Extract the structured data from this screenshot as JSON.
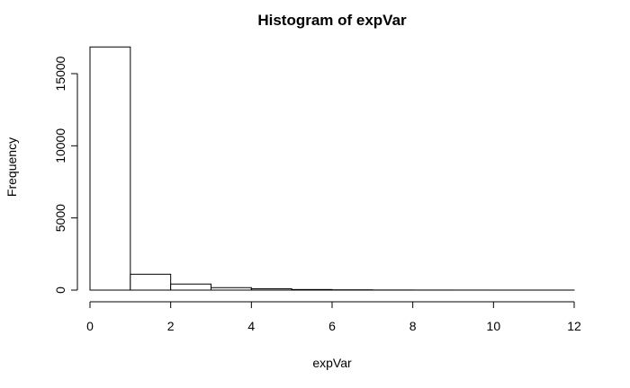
{
  "chart_data": {
    "type": "bar",
    "title": "Histogram of expVar",
    "xlabel": "expVar",
    "ylabel": "Frequency",
    "bins": [
      {
        "start": 0,
        "end": 1,
        "count": 16850
      },
      {
        "start": 1,
        "end": 2,
        "count": 1100
      },
      {
        "start": 2,
        "end": 3,
        "count": 420
      },
      {
        "start": 3,
        "end": 4,
        "count": 170
      },
      {
        "start": 4,
        "end": 5,
        "count": 90
      },
      {
        "start": 5,
        "end": 6,
        "count": 40
      },
      {
        "start": 6,
        "end": 7,
        "count": 20
      },
      {
        "start": 7,
        "end": 8,
        "count": 8
      },
      {
        "start": 8,
        "end": 9,
        "count": 4
      },
      {
        "start": 9,
        "end": 10,
        "count": 2
      },
      {
        "start": 10,
        "end": 11,
        "count": 1
      },
      {
        "start": 11,
        "end": 12,
        "count": 1
      }
    ],
    "xlim": [
      0,
      12
    ],
    "ylim": [
      0,
      17500
    ],
    "x_ticks": [
      0,
      2,
      4,
      6,
      8,
      10,
      12
    ],
    "y_ticks": [
      0,
      5000,
      10000,
      15000
    ],
    "grid": false,
    "bar_fill": "#ffffff",
    "bar_stroke": "#000000"
  }
}
